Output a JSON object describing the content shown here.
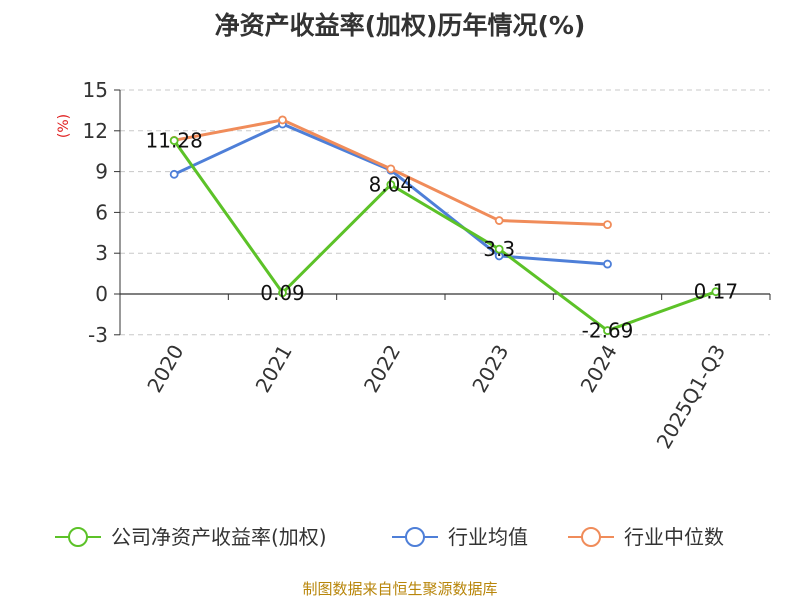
{
  "title": "净资产收益率(加权)历年情况(%)",
  "source": "制图数据来自恒生聚源数据库",
  "chart_data": {
    "type": "line",
    "title": "净资产收益率(加权)历年情况(%)",
    "ylabel": "(%)",
    "xlabel": "",
    "ylim": [
      -3,
      15
    ],
    "yticks": [
      -3,
      0,
      3,
      6,
      9,
      12,
      15
    ],
    "ytick_labels": [
      "-3",
      "0",
      "3",
      "6",
      "9",
      "12",
      "15"
    ],
    "grid": true,
    "legend_position": "bottom",
    "categories": [
      "2020",
      "2021",
      "2022",
      "2023",
      "2024",
      "2025Q1-Q3"
    ],
    "series": [
      {
        "name": "公司净资产收益率(加权)",
        "color": "#5cc228",
        "values": [
          11.28,
          0.09,
          8.04,
          3.3,
          -2.69,
          0.17
        ],
        "labels": [
          "11.28",
          "0.09",
          "8.04",
          "3.3",
          "-2.69",
          "0.17"
        ]
      },
      {
        "name": "行业均值",
        "color": "#4e7fd8",
        "values": [
          8.8,
          12.5,
          9.1,
          2.8,
          2.2,
          null
        ]
      },
      {
        "name": "行业中位数",
        "color": "#f08c5a",
        "values": [
          11.3,
          12.8,
          9.2,
          5.4,
          5.1,
          null
        ]
      }
    ]
  }
}
